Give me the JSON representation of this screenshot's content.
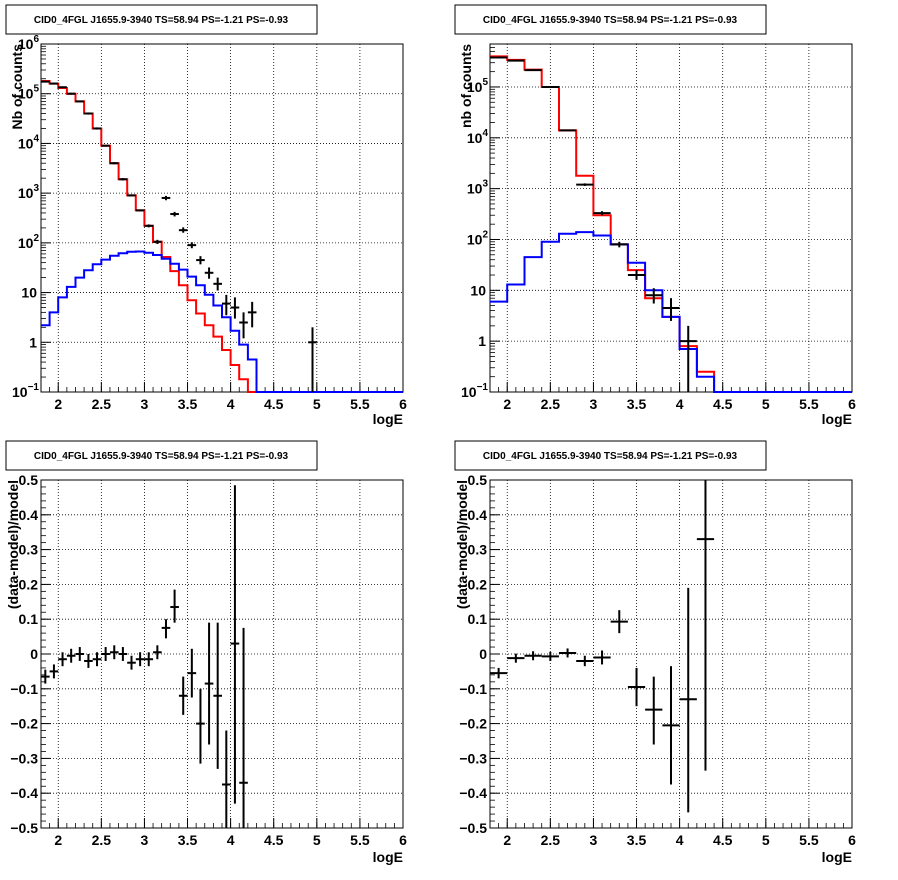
{
  "chart_data": [
    {
      "id": "p1",
      "type": "step-histogram",
      "title": "CID0_4FGL J1655.9-3940 TS=58.94 PS=-1.21 PS=-0.93",
      "xlabel": "logE",
      "ylabel": "Nb of counts",
      "xlim": [
        1.8,
        6.0
      ],
      "ylim": [
        0.1,
        1000000
      ],
      "yscale": "log",
      "grid": true,
      "x_ticks": [
        "2",
        "2.5",
        "3",
        "3.5",
        "4",
        "4.5",
        "5",
        "5.5",
        "6"
      ],
      "y_ticks": [
        {
          "v": 0.1,
          "base": "10",
          "exp": "−1"
        },
        {
          "v": 1,
          "base": "1",
          "exp": ""
        },
        {
          "v": 10,
          "base": "10",
          "exp": ""
        },
        {
          "v": 100,
          "base": "10",
          "exp": "2"
        },
        {
          "v": 1000,
          "base": "10",
          "exp": "3"
        },
        {
          "v": 10000,
          "base": "10",
          "exp": "4"
        },
        {
          "v": 100000,
          "base": "10",
          "exp": "5"
        },
        {
          "v": 1000000,
          "base": "10",
          "exp": "6"
        }
      ],
      "bins": [
        1.8,
        1.9,
        2.0,
        2.1,
        2.2,
        2.3,
        2.4,
        2.5,
        2.6,
        2.7,
        2.8,
        2.9,
        3.0,
        3.1,
        3.2,
        3.3,
        3.4,
        3.5,
        3.6,
        3.7,
        3.8,
        3.9,
        4.0,
        4.1,
        4.2,
        4.3,
        4.4,
        4.5,
        4.6,
        4.7,
        4.8,
        4.9,
        5.0,
        5.1,
        5.2,
        5.3,
        5.4,
        5.5,
        5.6,
        5.7,
        5.8,
        5.9,
        6.0
      ],
      "series": [
        {
          "color": "#ff0000",
          "role": "model",
          "values": [
            180000,
            160000,
            130000,
            100000,
            70000,
            40000,
            20000,
            9000,
            4000,
            1900,
            900,
            450,
            220,
            105,
            52,
            27,
            14,
            7,
            3.8,
            2.2,
            1.3,
            0.7,
            0.35,
            0.18,
            0.1,
            0.1,
            0.1,
            0.1,
            0.1,
            0.1,
            0.1,
            0.1,
            0.1,
            0.1,
            0.1,
            0.1,
            0.1,
            0.1,
            0.1,
            0.1,
            0.1,
            0.1
          ]
        },
        {
          "color": "#0000ff",
          "role": "component",
          "values": [
            2.2,
            4,
            8,
            13,
            20,
            28,
            37,
            46,
            55,
            62,
            66,
            67,
            63,
            57,
            48,
            38,
            29,
            21,
            14,
            9,
            5.5,
            3.2,
            1.7,
            0.9,
            0.45,
            0.1,
            0.1,
            0.1,
            0.1,
            0.1,
            0.1,
            0.1,
            0.1,
            0.1,
            0.1,
            0.1,
            0.1,
            0.1,
            0.1,
            0.1,
            0.1,
            0.1
          ]
        }
      ],
      "points": [
        {
          "x": 1.85,
          "y": 175000,
          "lo": 170000,
          "hi": 180000
        },
        {
          "x": 1.95,
          "y": 160000,
          "lo": 155000,
          "hi": 165000
        },
        {
          "x": 2.05,
          "y": 135000,
          "lo": 130000,
          "hi": 140000
        },
        {
          "x": 2.15,
          "y": 100000,
          "lo": 96000,
          "hi": 104000
        },
        {
          "x": 2.25,
          "y": 70000,
          "lo": 67000,
          "hi": 73000
        },
        {
          "x": 2.35,
          "y": 40000,
          "lo": 38000,
          "hi": 42000
        },
        {
          "x": 2.45,
          "y": 20000,
          "lo": 19000,
          "hi": 21000
        },
        {
          "x": 2.55,
          "y": 9000,
          "lo": 8700,
          "hi": 9300
        },
        {
          "x": 2.65,
          "y": 4000,
          "lo": 3800,
          "hi": 4200
        },
        {
          "x": 2.75,
          "y": 1900,
          "lo": 1800,
          "hi": 2000
        },
        {
          "x": 2.85,
          "y": 900,
          "lo": 860,
          "hi": 940
        },
        {
          "x": 2.95,
          "y": 450,
          "lo": 430,
          "hi": 470
        },
        {
          "x": 3.05,
          "y": 220,
          "lo": 205,
          "hi": 235
        },
        {
          "x": 3.15,
          "y": 105,
          "lo": 95,
          "hi": 115
        },
        {
          "x": 3.25,
          "y": 800,
          "lo": 720,
          "hi": 880
        },
        {
          "x": 3.35,
          "y": 380,
          "lo": 340,
          "hi": 420
        },
        {
          "x": 3.45,
          "y": 180,
          "lo": 160,
          "hi": 205
        },
        {
          "x": 3.55,
          "y": 90,
          "lo": 78,
          "hi": 103
        },
        {
          "x": 3.65,
          "y": 45,
          "lo": 37,
          "hi": 54
        },
        {
          "x": 3.75,
          "y": 25,
          "lo": 19,
          "hi": 32
        },
        {
          "x": 3.85,
          "y": 15,
          "lo": 11,
          "hi": 20
        },
        {
          "x": 3.95,
          "y": 6,
          "lo": 3.5,
          "hi": 9
        },
        {
          "x": 4.05,
          "y": 5,
          "lo": 3,
          "hi": 8
        },
        {
          "x": 4.15,
          "y": 2.5,
          "lo": 1.2,
          "hi": 4
        },
        {
          "x": 4.25,
          "y": 4,
          "lo": 2,
          "hi": 6.5
        },
        {
          "x": 4.95,
          "y": 1,
          "lo": 0.1,
          "hi": 2
        }
      ]
    },
    {
      "id": "p2",
      "type": "step-histogram",
      "title": "CID0_4FGL J1655.9-3940 TS=58.94 PS=-1.21 PS=-0.93",
      "xlabel": "logE",
      "ylabel": "nb of counts",
      "xlim": [
        1.8,
        6.0
      ],
      "ylim": [
        0.1,
        700000
      ],
      "yscale": "log",
      "grid": true,
      "x_ticks": [
        "2",
        "2.5",
        "3",
        "3.5",
        "4",
        "4.5",
        "5",
        "5.5",
        "6"
      ],
      "y_ticks": [
        {
          "v": 0.1,
          "base": "10",
          "exp": "−1"
        },
        {
          "v": 1,
          "base": "1",
          "exp": ""
        },
        {
          "v": 10,
          "base": "10",
          "exp": ""
        },
        {
          "v": 100,
          "base": "10",
          "exp": "2"
        },
        {
          "v": 1000,
          "base": "10",
          "exp": "3"
        },
        {
          "v": 10000,
          "base": "10",
          "exp": "4"
        },
        {
          "v": 100000,
          "base": "10",
          "exp": "5"
        }
      ],
      "bins": [
        1.8,
        2.0,
        2.2,
        2.4,
        2.6,
        2.8,
        3.0,
        3.2,
        3.4,
        3.6,
        3.8,
        4.0,
        4.2,
        4.4,
        4.6,
        4.8,
        5.0,
        5.2,
        5.4,
        5.6,
        5.8,
        6.0
      ],
      "series": [
        {
          "color": "#ff0000",
          "role": "model",
          "values": [
            400000,
            340000,
            220000,
            100000,
            14000,
            1800,
            300,
            80,
            25,
            7,
            3,
            0.8,
            0.25,
            0.1,
            0.1,
            0.1,
            0.1,
            0.1,
            0.1,
            0.1,
            0.1
          ]
        },
        {
          "color": "#0000ff",
          "role": "component",
          "values": [
            6,
            13,
            45,
            90,
            130,
            140,
            120,
            80,
            35,
            10,
            3,
            0.7,
            0.2,
            0.1,
            0.1,
            0.1,
            0.1,
            0.1,
            0.1,
            0.1,
            0.1
          ]
        }
      ],
      "points": [
        {
          "x": 1.9,
          "y": 380000,
          "lo": 370000,
          "hi": 390000
        },
        {
          "x": 2.1,
          "y": 330000,
          "lo": 322000,
          "hi": 338000
        },
        {
          "x": 2.3,
          "y": 215000,
          "lo": 209000,
          "hi": 221000
        },
        {
          "x": 2.5,
          "y": 100000,
          "lo": 97000,
          "hi": 103000
        },
        {
          "x": 2.7,
          "y": 14000,
          "lo": 13500,
          "hi": 14500
        },
        {
          "x": 2.9,
          "y": 1200,
          "lo": 1130,
          "hi": 1270
        },
        {
          "x": 3.1,
          "y": 330,
          "lo": 300,
          "hi": 360
        },
        {
          "x": 3.3,
          "y": 80,
          "lo": 70,
          "hi": 90
        },
        {
          "x": 3.5,
          "y": 20,
          "lo": 16,
          "hi": 25
        },
        {
          "x": 3.7,
          "y": 8,
          "lo": 5.5,
          "hi": 11
        },
        {
          "x": 3.9,
          "y": 4.5,
          "lo": 2.5,
          "hi": 7
        },
        {
          "x": 4.1,
          "y": 1,
          "lo": 0.1,
          "hi": 2
        }
      ]
    },
    {
      "id": "p3",
      "type": "scatter-errorbars",
      "title": "CID0_4FGL J1655.9-3940 TS=58.94 PS=-1.21 PS=-0.93",
      "xlabel": "logE",
      "ylabel": "(data-model)/model",
      "xlim": [
        1.8,
        6.0
      ],
      "ylim": [
        -0.5,
        0.5
      ],
      "grid": true,
      "x_ticks": [
        "2",
        "2.5",
        "3",
        "3.5",
        "4",
        "4.5",
        "5",
        "5.5",
        "6"
      ],
      "y_ticks": [
        "−0.5",
        "−0.4",
        "−0.3",
        "−0.2",
        "−0.1",
        "0",
        "0.1",
        "0.2",
        "0.3",
        "0.4",
        "0.5"
      ],
      "y_tick_values": [
        -0.5,
        -0.4,
        -0.3,
        -0.2,
        -0.1,
        0,
        0.1,
        0.2,
        0.3,
        0.4,
        0.5
      ],
      "xerr": 0.05,
      "points": [
        {
          "x": 1.85,
          "y": -0.065,
          "lo": -0.085,
          "hi": -0.045
        },
        {
          "x": 1.95,
          "y": -0.05,
          "lo": -0.07,
          "hi": -0.03
        },
        {
          "x": 2.05,
          "y": -0.015,
          "lo": -0.035,
          "hi": 0.005
        },
        {
          "x": 2.15,
          "y": -0.005,
          "lo": -0.025,
          "hi": 0.015
        },
        {
          "x": 2.25,
          "y": 0.0,
          "lo": -0.02,
          "hi": 0.02
        },
        {
          "x": 2.35,
          "y": -0.02,
          "lo": -0.04,
          "hi": 0.0
        },
        {
          "x": 2.45,
          "y": -0.015,
          "lo": -0.035,
          "hi": 0.005
        },
        {
          "x": 2.55,
          "y": 0.0,
          "lo": -0.02,
          "hi": 0.02
        },
        {
          "x": 2.65,
          "y": 0.005,
          "lo": -0.015,
          "hi": 0.025
        },
        {
          "x": 2.75,
          "y": 0.0,
          "lo": -0.02,
          "hi": 0.02
        },
        {
          "x": 2.85,
          "y": -0.025,
          "lo": -0.045,
          "hi": -0.005
        },
        {
          "x": 2.95,
          "y": -0.015,
          "lo": -0.035,
          "hi": 0.005
        },
        {
          "x": 3.05,
          "y": -0.015,
          "lo": -0.035,
          "hi": 0.005
        },
        {
          "x": 3.15,
          "y": 0.005,
          "lo": -0.015,
          "hi": 0.025
        },
        {
          "x": 3.25,
          "y": 0.075,
          "lo": 0.045,
          "hi": 0.1
        },
        {
          "x": 3.35,
          "y": 0.135,
          "lo": 0.09,
          "hi": 0.185
        },
        {
          "x": 3.45,
          "y": -0.12,
          "lo": -0.175,
          "hi": -0.065
        },
        {
          "x": 3.55,
          "y": -0.055,
          "lo": -0.125,
          "hi": 0.015
        },
        {
          "x": 3.65,
          "y": -0.2,
          "lo": -0.315,
          "hi": -0.1
        },
        {
          "x": 3.75,
          "y": -0.085,
          "lo": -0.26,
          "hi": 0.09
        },
        {
          "x": 3.85,
          "y": -0.12,
          "lo": -0.33,
          "hi": 0.09
        },
        {
          "x": 3.95,
          "y": -0.375,
          "lo": -0.5,
          "hi": -0.22
        },
        {
          "x": 4.05,
          "y": 0.03,
          "lo": -0.43,
          "hi": 0.485
        },
        {
          "x": 4.15,
          "y": -0.37,
          "lo": -0.5,
          "hi": 0.075
        }
      ]
    },
    {
      "id": "p4",
      "type": "scatter-errorbars",
      "title": "CID0_4FGL J1655.9-3940 TS=58.94 PS=-1.21 PS=-0.93",
      "xlabel": "logE",
      "ylabel": "(data-model)/model",
      "xlim": [
        1.8,
        6.0
      ],
      "ylim": [
        -0.5,
        0.5
      ],
      "grid": true,
      "x_ticks": [
        "2",
        "2.5",
        "3",
        "3.5",
        "4",
        "4.5",
        "5",
        "5.5",
        "6"
      ],
      "y_ticks": [
        "−0.5",
        "−0.4",
        "−0.3",
        "−0.2",
        "−0.1",
        "0",
        "0.1",
        "0.2",
        "0.3",
        "0.4",
        "0.5"
      ],
      "y_tick_values": [
        -0.5,
        -0.4,
        -0.3,
        -0.2,
        -0.1,
        0,
        0.1,
        0.2,
        0.3,
        0.4,
        0.5
      ],
      "xerr": 0.1,
      "points": [
        {
          "x": 1.9,
          "y": -0.055,
          "lo": -0.07,
          "hi": -0.04
        },
        {
          "x": 2.1,
          "y": -0.012,
          "lo": -0.025,
          "hi": 0.001
        },
        {
          "x": 2.3,
          "y": -0.005,
          "lo": -0.018,
          "hi": 0.008
        },
        {
          "x": 2.5,
          "y": -0.007,
          "lo": -0.02,
          "hi": 0.006
        },
        {
          "x": 2.7,
          "y": 0.003,
          "lo": -0.01,
          "hi": 0.016
        },
        {
          "x": 2.9,
          "y": -0.02,
          "lo": -0.035,
          "hi": -0.005
        },
        {
          "x": 3.1,
          "y": -0.01,
          "lo": -0.03,
          "hi": 0.01
        },
        {
          "x": 3.3,
          "y": 0.093,
          "lo": 0.06,
          "hi": 0.126
        },
        {
          "x": 3.5,
          "y": -0.095,
          "lo": -0.15,
          "hi": -0.04
        },
        {
          "x": 3.7,
          "y": -0.16,
          "lo": -0.26,
          "hi": -0.065
        },
        {
          "x": 3.9,
          "y": -0.205,
          "lo": -0.375,
          "hi": -0.035
        },
        {
          "x": 4.1,
          "y": -0.13,
          "lo": -0.455,
          "hi": 0.19
        },
        {
          "x": 4.3,
          "y": 0.33,
          "lo": -0.335,
          "hi": 0.5
        }
      ]
    }
  ]
}
